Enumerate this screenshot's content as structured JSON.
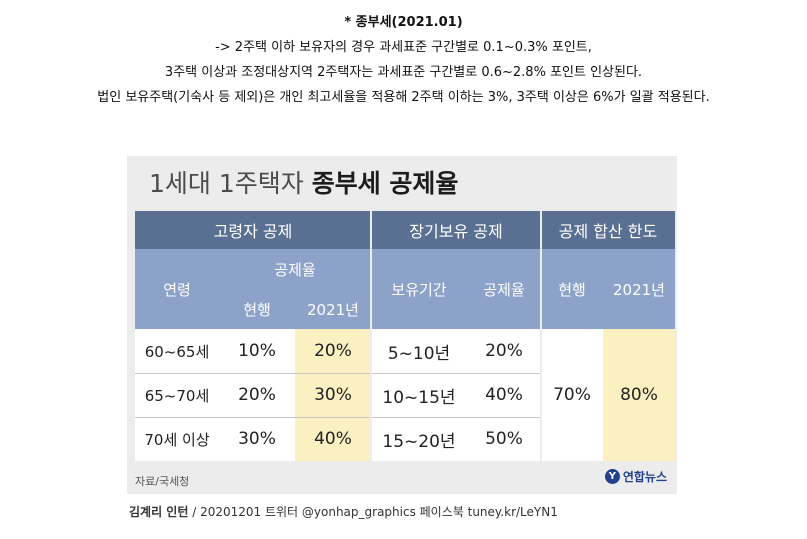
{
  "article": {
    "title": "* 종부세(2021.01)",
    "line1": "-> 2주택 이하 보유자의 경우 과세표준 구간별로 0.1~0.3% 포인트,",
    "line2": "3주택 이상과 조정대상지역 2주택자는 과세표준 구간별로 0.6~2.8% 포인트 인상된다.",
    "line3": "법인 보유주택(기숙사 등 제외)은 개인 최고세율을 적용해 2주택 이하는 3%, 3주택 이상은 6%가 일괄 적용된다."
  },
  "infographic": {
    "title_light": "1세대 1주택자 ",
    "title_bold": "종부세 공제율",
    "groups": {
      "elderly": "고령자 공제",
      "longterm": "장기보유 공제",
      "limit": "공제 합산 한도"
    },
    "subheaders": {
      "age": "연령",
      "rate": "공제율",
      "current": "현행",
      "y2021": "2021년",
      "period": "보유기간",
      "rate2": "공제율",
      "limit_current": "현행",
      "limit_2021": "2021년"
    },
    "rows": [
      {
        "age": "60~65세",
        "current": "10%",
        "y2021": "20%",
        "period": "5~10년",
        "rate": "20%"
      },
      {
        "age": "65~70세",
        "current": "20%",
        "y2021": "30%",
        "period": "10~15년",
        "rate": "40%"
      },
      {
        "age": "70세 이상",
        "current": "30%",
        "y2021": "40%",
        "period": "15~20년",
        "rate": "50%"
      }
    ],
    "limit_values": {
      "current": "70%",
      "y2021": "80%"
    },
    "source": "자료/국세청",
    "logo": "연합뉴스",
    "logo_mark": "Y"
  },
  "credit": {
    "author": "김계리 인턴",
    "rest": " / 20201201  트위터 @yonhap_graphics  페이스북 tuney.kr/LeYN1"
  },
  "colors": {
    "header_dark": "#5a7093",
    "header_light": "#8ca2c9",
    "highlight": "#fbf0c2",
    "panel_bg": "#ececec",
    "logo": "#23408f"
  }
}
